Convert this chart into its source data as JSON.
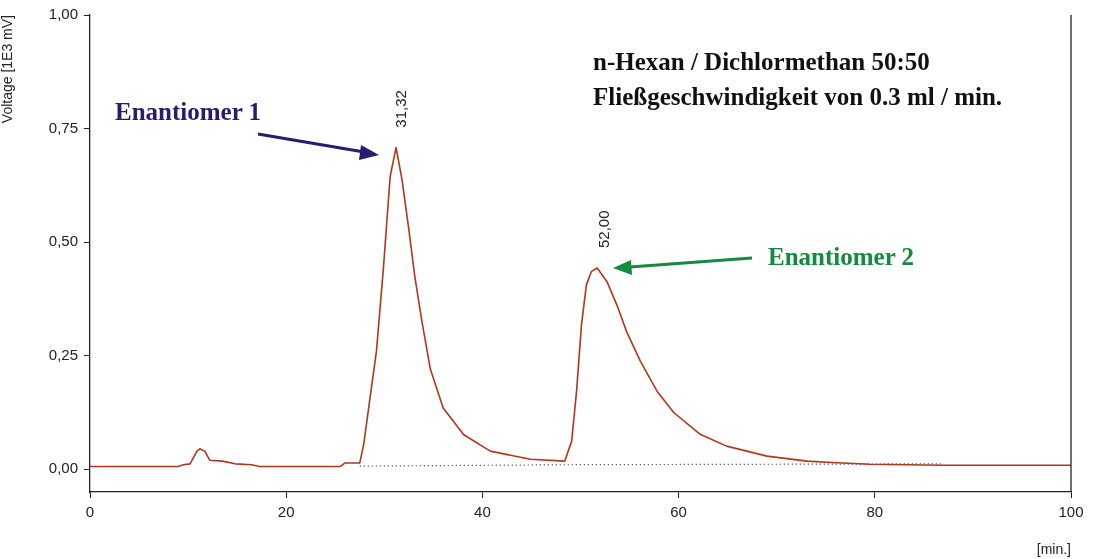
{
  "chart_data": {
    "type": "line",
    "xlabel": "[min.]",
    "ylabel": "Voltage [1E3 mV]",
    "xlim": [
      0,
      100
    ],
    "xticks": [
      0,
      20,
      40,
      60,
      80,
      100
    ],
    "ylim": [
      -0.05,
      1.0
    ],
    "yticks": [
      {
        "value": 0,
        "label": "0,00"
      },
      {
        "value": 0.25,
        "label": "0,25"
      },
      {
        "value": 0.5,
        "label": "0,50"
      },
      {
        "value": 0.75,
        "label": "0,75"
      },
      {
        "value": 1,
        "label": "1,00"
      }
    ],
    "grid": false,
    "legend": false,
    "marker": "none",
    "series": [
      {
        "color": "#b3361c",
        "line_style": "solid",
        "x": [
          0,
          9,
          9.5,
          10.2,
          10.9,
          11.2,
          11.7,
          12.2,
          13.5,
          14.8,
          16.5,
          17.3,
          20,
          25.5,
          26,
          27,
          27.5,
          27.9,
          28.5,
          29.2,
          29.9,
          30.6,
          31.2,
          31.8,
          32.5,
          33.1,
          33.8,
          34.7,
          36.0,
          38.1,
          40.8,
          44.9,
          48.4,
          49.1,
          49.6,
          50.1,
          50.6,
          51.1,
          51.7,
          52.7,
          53.7,
          54.7,
          56.1,
          57.8,
          59.5,
          62.2,
          64.9,
          69.0,
          73.1,
          75.6,
          79.5,
          87.0,
          100
        ],
        "values": [
          0.006,
          0.006,
          0.01,
          0.012,
          0.04,
          0.045,
          0.04,
          0.02,
          0.018,
          0.012,
          0.01,
          0.006,
          0.006,
          0.006,
          0.014,
          0.014,
          0.014,
          0.055,
          0.15,
          0.26,
          0.44,
          0.645,
          0.708,
          0.638,
          0.528,
          0.426,
          0.33,
          0.22,
          0.135,
          0.076,
          0.04,
          0.022,
          0.018,
          0.062,
          0.172,
          0.318,
          0.406,
          0.435,
          0.443,
          0.413,
          0.362,
          0.303,
          0.238,
          0.172,
          0.125,
          0.077,
          0.051,
          0.029,
          0.018,
          0.015,
          0.011,
          0.009,
          0.009
        ]
      },
      {
        "color": "#333333",
        "line_style": "dotted",
        "x": [
          27.5,
          48.4,
          87.0
        ],
        "values": [
          0.007,
          0.01,
          0.012
        ]
      }
    ],
    "annotations": [
      "Enantiomer 1",
      "Enantiomer 2",
      {
        "text": "31,32",
        "x": 31.32,
        "y": 0.708
      },
      {
        "text": "52,00",
        "x": 52.0,
        "y": 0.443
      },
      "n-Hexan / Dichlormethan 50:50",
      "Fließgeschwindigkeit von 0.3 ml / min."
    ]
  }
}
